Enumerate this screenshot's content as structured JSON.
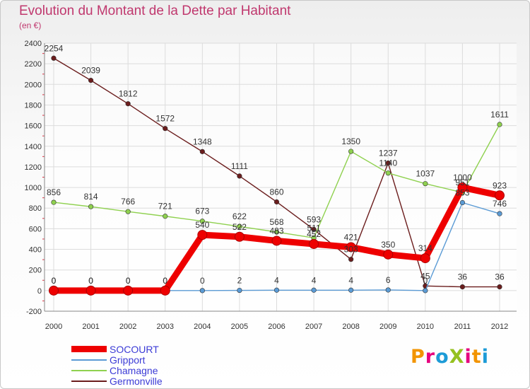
{
  "header": {
    "title": "Evolution du Montant de la Dette par Habitant",
    "subtitle": "(en €)"
  },
  "logo": {
    "text": "ProXiti",
    "colors": [
      "#f29400",
      "#e6007e",
      "#1d9bd7",
      "#95c11f",
      "#e6007e",
      "#f29400",
      "#1d9bd7"
    ]
  },
  "chart_data": {
    "type": "line",
    "title": "Evolution du Montant de la Dette par Habitant",
    "subtitle": "(en €)",
    "xlabel": "",
    "ylabel": "",
    "ylim": [
      -200,
      2400
    ],
    "yticks": [
      -200,
      0,
      200,
      400,
      600,
      800,
      1000,
      1200,
      1400,
      1600,
      1800,
      2000,
      2200,
      2400
    ],
    "x": [
      "2000",
      "2001",
      "2002",
      "2003",
      "2004",
      "2005",
      "2006",
      "2007",
      "2008",
      "2009",
      "2010",
      "2011",
      "2012"
    ],
    "series": [
      {
        "name": "Germonville",
        "color": "#6b1d1d",
        "values": [
          2254,
          2039,
          1812,
          1572,
          1348,
          1111,
          860,
          593,
          303,
          1237,
          45,
          36,
          36
        ]
      },
      {
        "name": "Chamagne",
        "color": "#8fd14f",
        "values": [
          856,
          814,
          766,
          721,
          673,
          622,
          568,
          511,
          1350,
          1140,
          1037,
          951,
          1611
        ]
      },
      {
        "name": "Gripport",
        "color": "#5b9bd5",
        "values": [
          0,
          0,
          0,
          0,
          0,
          2,
          4,
          4,
          4,
          6,
          0,
          853,
          746
        ]
      },
      {
        "name": "SOCOURT",
        "color": "#ee0000",
        "values": [
          0,
          0,
          0,
          0,
          540,
          522,
          483,
          452,
          421,
          350,
          314,
          1000,
          923
        ]
      }
    ],
    "legend": {
      "position": "bottom-left",
      "items": [
        {
          "name": "SOCOURT",
          "color": "#ee0000",
          "text_color": "#3b3bd6"
        },
        {
          "name": "Gripport",
          "color": "#5b9bd5",
          "text_color": "#3b3bd6"
        },
        {
          "name": "Chamagne",
          "color": "#8fd14f",
          "text_color": "#3b3bd6"
        },
        {
          "name": "Germonville",
          "color": "#6b1d1d",
          "text_color": "#3b3bd6"
        }
      ]
    }
  }
}
